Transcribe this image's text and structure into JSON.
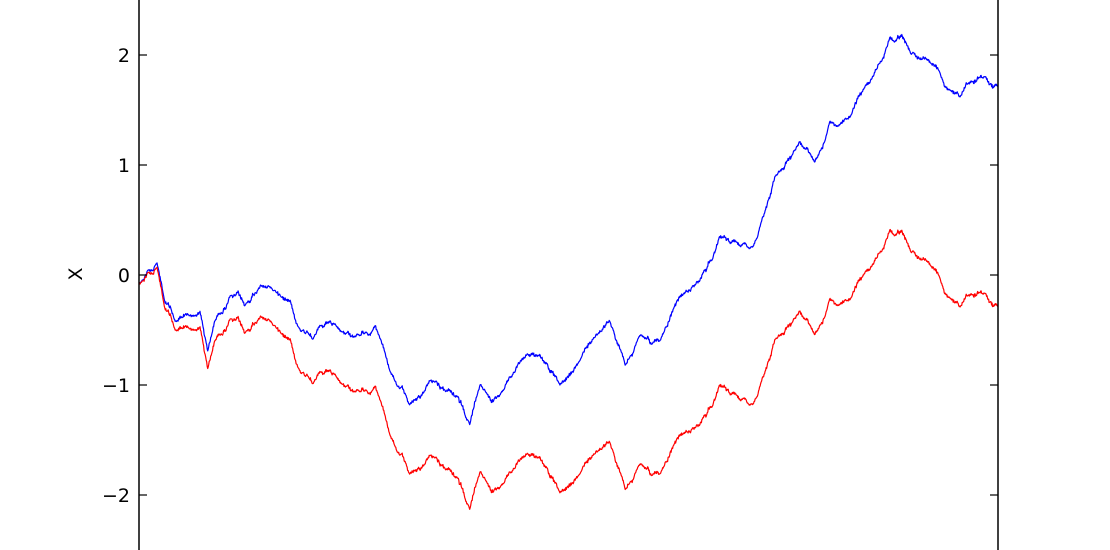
{
  "chart_data": {
    "type": "line",
    "title": "",
    "xlabel": "",
    "ylabel": "X",
    "ylim": [
      -2.5,
      2.5
    ],
    "xlim": [
      0,
      1
    ],
    "yticks": [
      2,
      1,
      0,
      -1,
      -2
    ],
    "ytick_labels": [
      "2",
      "1",
      "0",
      "−1",
      "−2"
    ],
    "grid": false,
    "x": [
      0,
      0.01,
      0.021,
      0.03,
      0.042,
      0.059,
      0.071,
      0.08,
      0.088,
      0.106,
      0.123,
      0.141,
      0.158,
      0.176,
      0.188,
      0.211,
      0.234,
      0.257,
      0.275,
      0.292,
      0.315,
      0.339,
      0.362,
      0.385,
      0.397,
      0.42,
      0.444,
      0.467,
      0.49,
      0.513,
      0.537,
      0.548,
      0.566,
      0.583,
      0.606,
      0.63,
      0.653,
      0.676,
      0.7,
      0.723,
      0.74,
      0.769,
      0.787,
      0.804,
      0.828,
      0.851,
      0.874,
      0.898,
      0.921,
      0.938,
      0.956,
      0.967,
      0.985,
      1.0
    ],
    "series": [
      {
        "color": "#0000ff",
        "values": [
          -0.08,
          0.04,
          0.11,
          -0.24,
          -0.42,
          -0.37,
          -0.33,
          -0.69,
          -0.42,
          -0.19,
          -0.28,
          -0.1,
          -0.14,
          -0.23,
          -0.51,
          -0.46,
          -0.51,
          -0.55,
          -0.46,
          -0.87,
          -1.18,
          -0.96,
          -1.05,
          -1.36,
          -1.0,
          -1.09,
          -0.78,
          -0.73,
          -1.0,
          -0.78,
          -0.51,
          -0.42,
          -0.82,
          -0.55,
          -0.6,
          -0.19,
          -0.05,
          0.35,
          0.26,
          0.44,
          0.89,
          1.21,
          1.03,
          1.39,
          1.44,
          1.75,
          2.16,
          2.02,
          1.93,
          1.71,
          1.62,
          1.75,
          1.8,
          1.71
        ]
      },
      {
        "color": "#ff0000",
        "values": [
          -0.08,
          0.02,
          0.07,
          -0.3,
          -0.5,
          -0.49,
          -0.47,
          -0.85,
          -0.6,
          -0.4,
          -0.53,
          -0.38,
          -0.46,
          -0.58,
          -0.89,
          -0.88,
          -0.98,
          -1.06,
          -1.01,
          -1.45,
          -1.81,
          -1.64,
          -1.77,
          -2.13,
          -1.79,
          -1.93,
          -1.67,
          -1.66,
          -1.98,
          -1.81,
          -1.58,
          -1.52,
          -1.95,
          -1.72,
          -1.81,
          -1.45,
          -1.36,
          -1.0,
          -1.14,
          -1.01,
          -0.59,
          -0.33,
          -0.54,
          -0.22,
          -0.22,
          0.05,
          0.41,
          0.22,
          0.09,
          -0.17,
          -0.29,
          -0.18,
          -0.17,
          -0.29
        ]
      }
    ]
  }
}
